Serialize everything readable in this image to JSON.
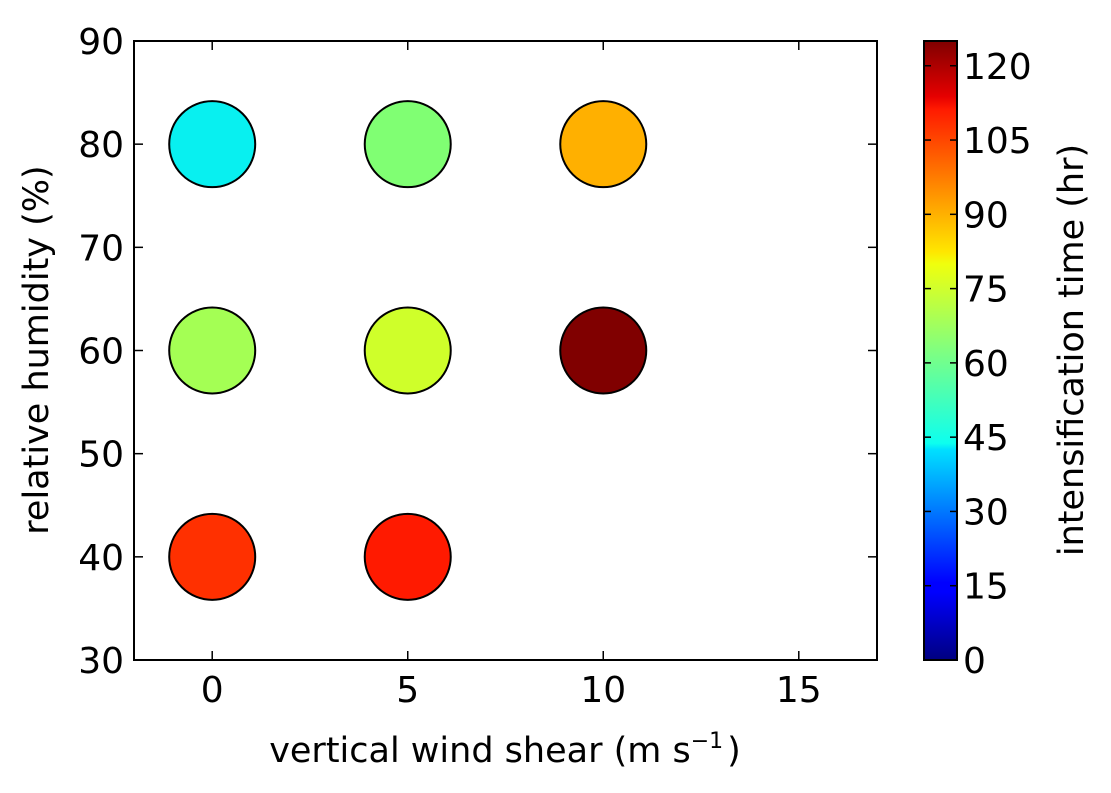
{
  "chart_data": {
    "type": "scatter",
    "xlabel": "vertical wind shear (m s",
    "xlabel_sup": "−1",
    "xlabel_end": ")",
    "ylabel": "relative humidity (%)",
    "xlim": [
      -2,
      17
    ],
    "ylim": [
      30,
      90
    ],
    "xticks": [
      0,
      5,
      10,
      15
    ],
    "yticks": [
      30,
      40,
      50,
      60,
      70,
      80,
      90
    ],
    "colorbar": {
      "label": "intensification time (hr)",
      "range": [
        0,
        125
      ],
      "ticks": [
        0,
        15,
        30,
        45,
        60,
        75,
        90,
        105,
        120
      ],
      "colormap": "jet"
    },
    "points": [
      {
        "x": 0,
        "y": 80,
        "value": 45,
        "color": "#08f0f0"
      },
      {
        "x": 5,
        "y": 80,
        "value": 67,
        "color": "#80ff73"
      },
      {
        "x": 10,
        "y": 80,
        "value": 94,
        "color": "#ffb000"
      },
      {
        "x": 0,
        "y": 60,
        "value": 71,
        "color": "#a4ff54"
      },
      {
        "x": 5,
        "y": 60,
        "value": 79,
        "color": "#cfff2a"
      },
      {
        "x": 10,
        "y": 60,
        "value": 124,
        "color": "#800000"
      },
      {
        "x": 0,
        "y": 40,
        "value": 107,
        "color": "#ff3000"
      },
      {
        "x": 5,
        "y": 40,
        "value": 110,
        "color": "#ff1a00"
      }
    ],
    "grid": false,
    "legend": "none"
  }
}
